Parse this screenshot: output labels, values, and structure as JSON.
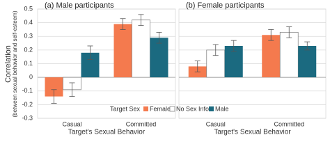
{
  "chart_data": {
    "type": "bar",
    "y_label": [
      "Correlation",
      "(between sexual behavior and self-esteem)"
    ],
    "x_label": "Target's Sexual Behavior",
    "legend_title": "Target Sex",
    "categories": [
      "Casual",
      "Committed"
    ],
    "series": [
      {
        "name": "Female",
        "color": "#f47a4e"
      },
      {
        "name": "No Sex Info",
        "color": "#ffffff"
      },
      {
        "name": "Male",
        "color": "#1b6a80"
      }
    ],
    "panels": [
      {
        "title": "(a) Male participants",
        "values": [
          [
            -0.14,
            0.39
          ],
          [
            -0.09,
            0.42
          ],
          [
            0.18,
            0.29
          ]
        ],
        "errors": [
          [
            0.05,
            0.04
          ],
          [
            0.05,
            0.04
          ],
          [
            0.05,
            0.04
          ]
        ]
      },
      {
        "title": "(b) Female participants",
        "values": [
          [
            0.08,
            0.31
          ],
          [
            0.2,
            0.33
          ],
          [
            0.23,
            0.23
          ]
        ],
        "errors": [
          [
            0.04,
            0.04
          ],
          [
            0.04,
            0.04
          ],
          [
            0.04,
            0.03
          ]
        ]
      }
    ],
    "ylim": [
      -0.3,
      0.5
    ],
    "yticks": [
      0.5,
      0.4,
      0.3,
      0.2,
      0.1,
      0,
      -0.1,
      -0.2,
      -0.3
    ],
    "grid": true
  }
}
